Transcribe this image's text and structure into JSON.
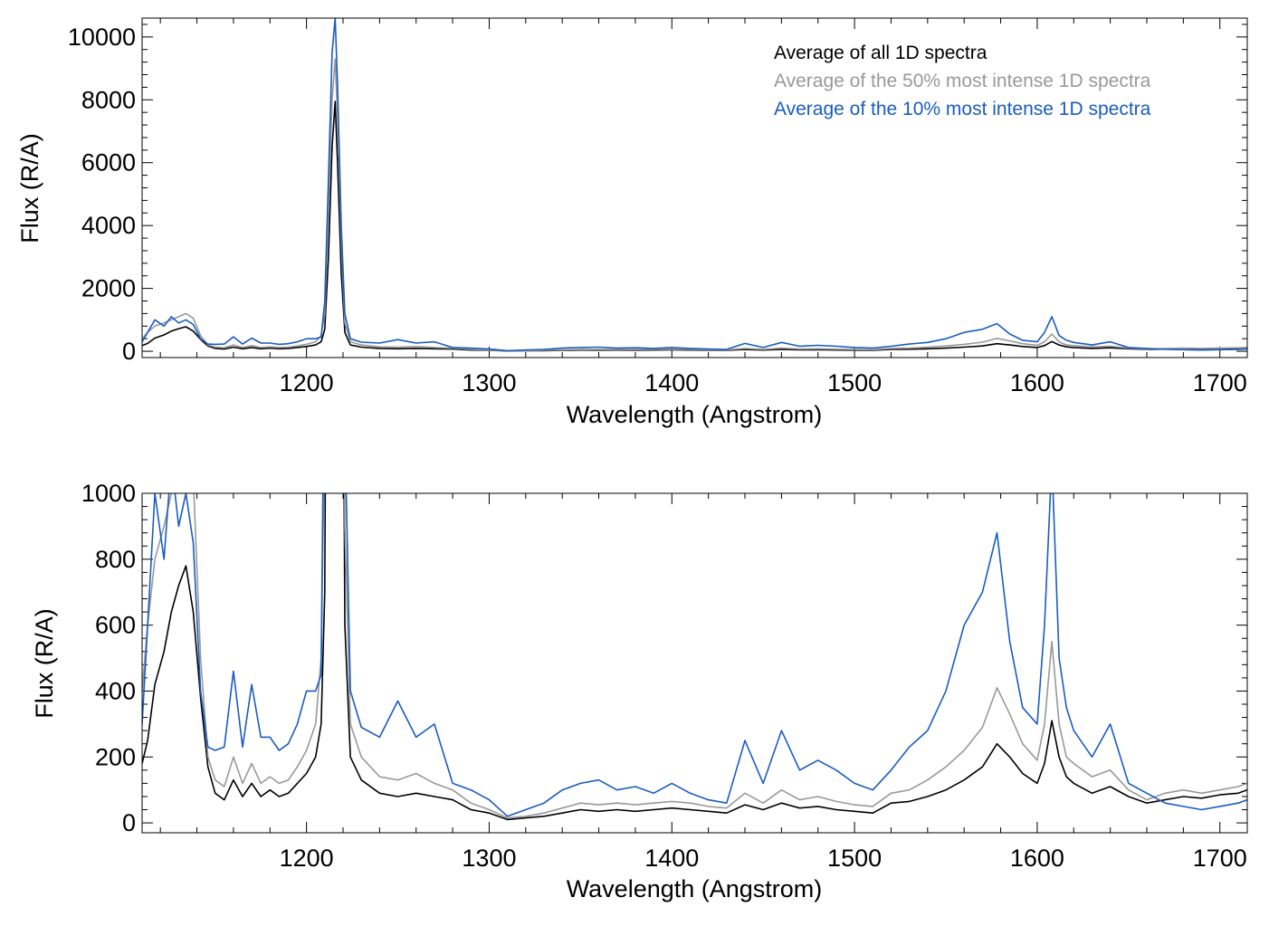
{
  "colors": {
    "all": "#000000",
    "half": "#999999",
    "tenth": "#1a5cc0",
    "axis": "#000000",
    "background": "#ffffff"
  },
  "chart_data": [
    {
      "type": "line",
      "xlabel": "Wavelength (Angstrom)",
      "ylabel": "Flux (R/A)",
      "xlim": [
        1110,
        1715
      ],
      "ylim": [
        -200,
        10600
      ],
      "xticks": [
        1200,
        1300,
        1400,
        1500,
        1600,
        1700
      ],
      "yticks": [
        0,
        2000,
        4000,
        6000,
        8000,
        10000
      ],
      "legend": {
        "placement": "top-right",
        "entries": [
          {
            "label": "Average of all 1D spectra",
            "color": "#000000"
          },
          {
            "label": "Average of the 50% most intense 1D spectra",
            "color": "#999999"
          },
          {
            "label": "Average of the 10% most intense 1D spectra",
            "color": "#1a5cc0"
          }
        ]
      },
      "series": [
        {
          "key": "all",
          "color": "#000000",
          "x": [
            1110,
            1113,
            1117,
            1122,
            1126,
            1130,
            1134,
            1138,
            1142,
            1146,
            1150,
            1155,
            1160,
            1165,
            1170,
            1175,
            1180,
            1185,
            1190,
            1195,
            1200,
            1205,
            1208,
            1210,
            1212,
            1214,
            1215.7,
            1217,
            1219,
            1221,
            1224,
            1230,
            1240,
            1250,
            1260,
            1270,
            1280,
            1290,
            1300,
            1310,
            1320,
            1330,
            1340,
            1350,
            1360,
            1370,
            1380,
            1390,
            1400,
            1410,
            1420,
            1430,
            1440,
            1450,
            1460,
            1470,
            1480,
            1490,
            1500,
            1510,
            1520,
            1530,
            1540,
            1550,
            1560,
            1570,
            1578,
            1585,
            1592,
            1600,
            1604,
            1608,
            1612,
            1616,
            1620,
            1630,
            1640,
            1650,
            1660,
            1670,
            1680,
            1690,
            1700,
            1710,
            1715
          ],
          "y": [
            180,
            250,
            420,
            520,
            640,
            720,
            780,
            640,
            380,
            170,
            90,
            70,
            130,
            80,
            120,
            80,
            100,
            80,
            90,
            120,
            150,
            200,
            300,
            700,
            3000,
            6500,
            7950,
            6000,
            2500,
            600,
            200,
            130,
            90,
            80,
            90,
            80,
            70,
            40,
            30,
            10,
            15,
            20,
            30,
            40,
            35,
            40,
            35,
            40,
            45,
            40,
            35,
            30,
            55,
            40,
            60,
            45,
            50,
            40,
            35,
            30,
            60,
            65,
            80,
            100,
            130,
            170,
            240,
            200,
            150,
            120,
            180,
            310,
            200,
            140,
            120,
            90,
            110,
            80,
            60,
            70,
            80,
            75,
            85,
            90,
            100
          ]
        },
        {
          "key": "half",
          "color": "#999999",
          "x": [
            1110,
            1113,
            1117,
            1122,
            1126,
            1130,
            1134,
            1138,
            1142,
            1146,
            1150,
            1155,
            1160,
            1165,
            1170,
            1175,
            1180,
            1185,
            1190,
            1195,
            1200,
            1205,
            1208,
            1210,
            1212,
            1214,
            1215.7,
            1217,
            1219,
            1221,
            1224,
            1230,
            1240,
            1250,
            1260,
            1270,
            1280,
            1290,
            1300,
            1310,
            1320,
            1330,
            1340,
            1350,
            1360,
            1370,
            1380,
            1390,
            1400,
            1410,
            1420,
            1430,
            1440,
            1450,
            1460,
            1470,
            1480,
            1490,
            1500,
            1510,
            1520,
            1530,
            1540,
            1550,
            1560,
            1570,
            1578,
            1585,
            1592,
            1600,
            1604,
            1608,
            1612,
            1616,
            1620,
            1630,
            1640,
            1650,
            1660,
            1670,
            1680,
            1690,
            1700,
            1710,
            1715
          ],
          "y": [
            400,
            600,
            800,
            900,
            1000,
            1100,
            1200,
            1050,
            500,
            200,
            130,
            110,
            200,
            120,
            180,
            120,
            140,
            120,
            130,
            170,
            220,
            300,
            500,
            1200,
            4500,
            8000,
            9300,
            7500,
            3500,
            900,
            300,
            200,
            140,
            130,
            150,
            120,
            100,
            60,
            40,
            15,
            20,
            30,
            45,
            60,
            55,
            60,
            55,
            60,
            65,
            60,
            50,
            45,
            90,
            60,
            100,
            70,
            80,
            65,
            55,
            50,
            90,
            100,
            130,
            170,
            220,
            290,
            410,
            330,
            240,
            190,
            300,
            550,
            300,
            200,
            180,
            140,
            160,
            100,
            70,
            90,
            100,
            90,
            100,
            110,
            120
          ]
        },
        {
          "key": "tenth",
          "color": "#1a5cc0",
          "x": [
            1110,
            1113,
            1117,
            1122,
            1126,
            1130,
            1134,
            1138,
            1142,
            1146,
            1150,
            1155,
            1160,
            1165,
            1170,
            1175,
            1180,
            1185,
            1190,
            1195,
            1200,
            1205,
            1208,
            1210,
            1212,
            1214,
            1215.7,
            1217,
            1219,
            1221,
            1224,
            1230,
            1240,
            1250,
            1260,
            1270,
            1280,
            1290,
            1300,
            1310,
            1320,
            1330,
            1340,
            1350,
            1360,
            1370,
            1380,
            1390,
            1400,
            1410,
            1420,
            1430,
            1440,
            1450,
            1460,
            1470,
            1480,
            1490,
            1500,
            1510,
            1520,
            1530,
            1540,
            1550,
            1560,
            1570,
            1578,
            1585,
            1592,
            1600,
            1604,
            1608,
            1612,
            1616,
            1620,
            1630,
            1640,
            1650,
            1660,
            1670,
            1680,
            1690,
            1700,
            1710,
            1715
          ],
          "y": [
            300,
            600,
            1000,
            800,
            1100,
            900,
            1000,
            850,
            400,
            230,
            220,
            230,
            460,
            230,
            420,
            260,
            260,
            220,
            240,
            300,
            400,
            400,
            450,
            1600,
            5500,
            9500,
            10600,
            8500,
            4000,
            1200,
            400,
            290,
            260,
            370,
            260,
            300,
            120,
            100,
            70,
            20,
            40,
            60,
            100,
            120,
            130,
            100,
            110,
            90,
            120,
            90,
            70,
            60,
            250,
            120,
            280,
            160,
            190,
            160,
            120,
            100,
            160,
            230,
            280,
            400,
            600,
            700,
            880,
            550,
            350,
            300,
            600,
            1100,
            500,
            350,
            280,
            200,
            300,
            120,
            90,
            60,
            50,
            40,
            50,
            60,
            70
          ]
        }
      ]
    },
    {
      "type": "line",
      "xlabel": "Wavelength (Angstrom)",
      "ylabel": "Flux (R/A)",
      "xlim": [
        1110,
        1715
      ],
      "ylim": [
        -30,
        1000
      ],
      "xticks": [
        1200,
        1300,
        1400,
        1500,
        1600,
        1700
      ],
      "yticks": [
        0,
        200,
        400,
        600,
        800,
        1000
      ],
      "series_ref": "same as top panel (clipped to y-range)"
    }
  ]
}
